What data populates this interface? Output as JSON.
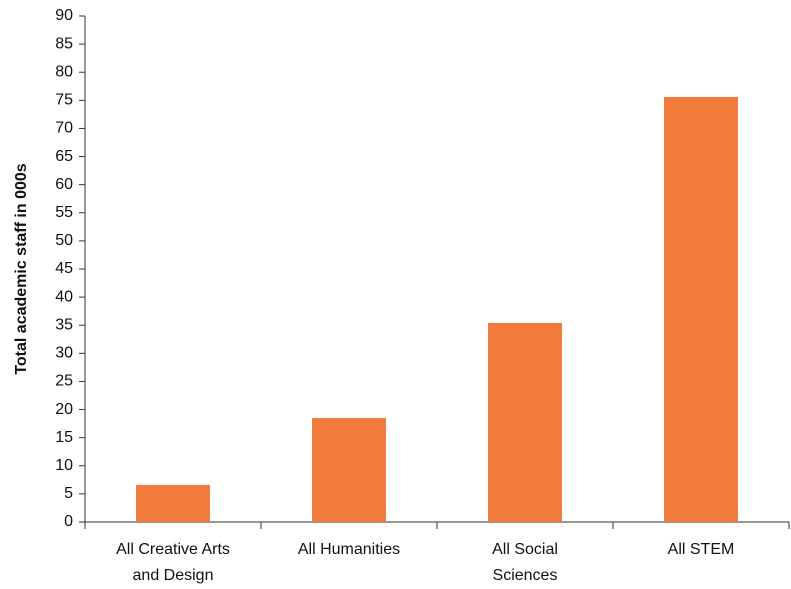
{
  "chart_data": {
    "type": "bar",
    "y_label": "Total academic staff in 000s",
    "categories": [
      "All Creative Arts and Design",
      "All Humanities",
      "All Social Sciences",
      "All STEM"
    ],
    "values": [
      6.6,
      18.5,
      35.4,
      75.6
    ],
    "color": "#f37c3c",
    "ylim": [
      0,
      90
    ],
    "yticks": [
      0,
      5,
      10,
      15,
      20,
      25,
      30,
      35,
      40,
      45,
      50,
      55,
      60,
      65,
      70,
      75,
      80,
      85,
      90
    ],
    "grid": false
  }
}
